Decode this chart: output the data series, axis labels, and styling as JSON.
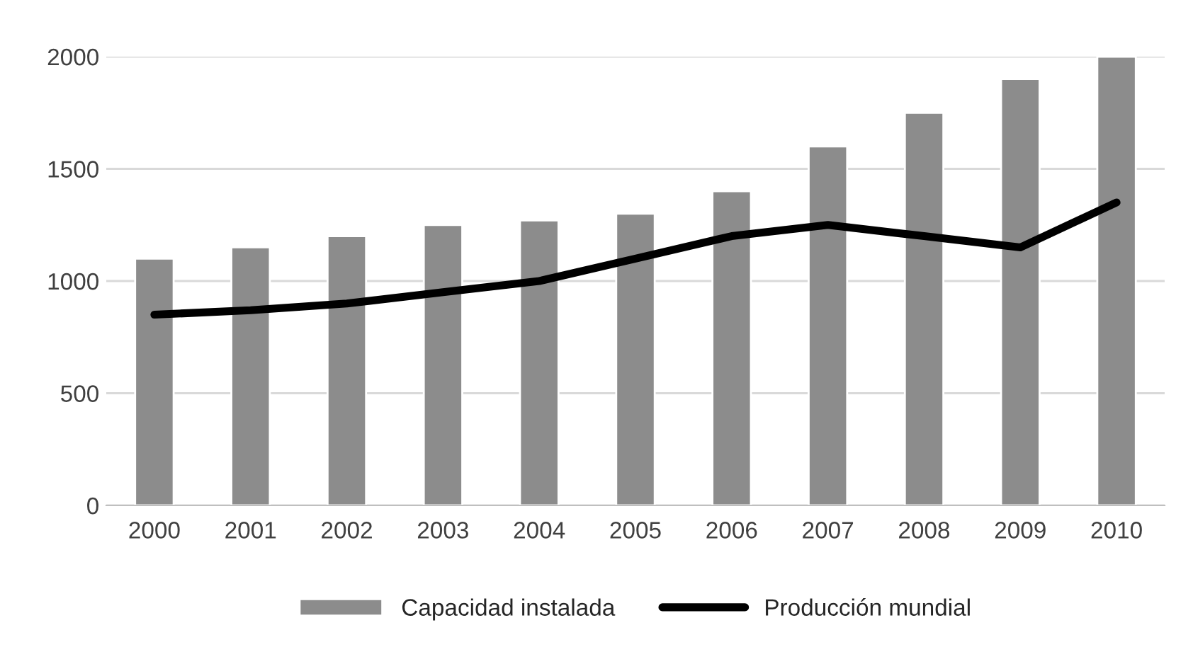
{
  "chart_data": {
    "type": "bar",
    "categories": [
      "2000",
      "2001",
      "2002",
      "2003",
      "2004",
      "2005",
      "2006",
      "2007",
      "2008",
      "2009",
      "2010"
    ],
    "series": [
      {
        "name": "Capacidad instalada",
        "type": "bar",
        "color": "#8c8c8c",
        "values": [
          1100,
          1150,
          1200,
          1250,
          1270,
          1300,
          1400,
          1600,
          1750,
          1900,
          2000
        ]
      },
      {
        "name": "Producción mundial",
        "type": "line",
        "color": "#000000",
        "values": [
          850,
          870,
          900,
          950,
          1000,
          1100,
          1200,
          1250,
          1200,
          1150,
          1350
        ]
      }
    ],
    "ylim": [
      0,
      2000
    ],
    "yticks": [
      0,
      500,
      1000,
      1500,
      2000
    ],
    "grid": "y",
    "legend": "bottom",
    "marker": "none",
    "line_style": "solid"
  }
}
